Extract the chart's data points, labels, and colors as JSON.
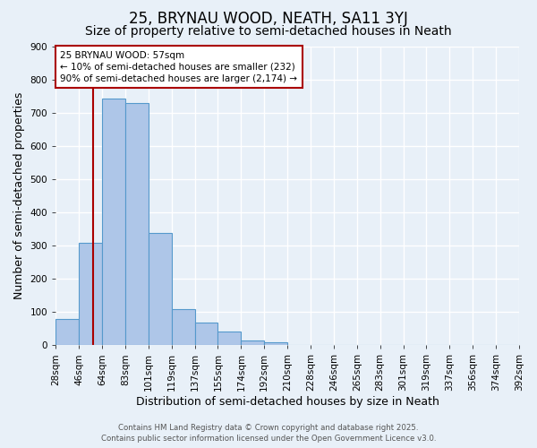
{
  "title": "25, BRYNAU WOOD, NEATH, SA11 3YJ",
  "subtitle": "Size of property relative to semi-detached houses in Neath",
  "xlabel": "Distribution of semi-detached houses by size in Neath",
  "ylabel": "Number of semi-detached properties",
  "bar_values": [
    80,
    308,
    742,
    728,
    338,
    108,
    68,
    40,
    15,
    10,
    0,
    0,
    0,
    0,
    0,
    0,
    0,
    0,
    0,
    0
  ],
  "tick_labels": [
    "28sqm",
    "46sqm",
    "64sqm",
    "83sqm",
    "101sqm",
    "119sqm",
    "137sqm",
    "155sqm",
    "174sqm",
    "192sqm",
    "210sqm",
    "228sqm",
    "246sqm",
    "265sqm",
    "283sqm",
    "301sqm",
    "319sqm",
    "337sqm",
    "356sqm",
    "374sqm",
    "392sqm"
  ],
  "ylim": [
    0,
    900
  ],
  "yticks": [
    0,
    100,
    200,
    300,
    400,
    500,
    600,
    700,
    800,
    900
  ],
  "bar_color": "#aec6e8",
  "bar_edge_color": "#5599cc",
  "bg_color": "#e8f0f8",
  "grid_color": "#ffffff",
  "vline_index": 1.6,
  "vline_color": "#aa0000",
  "annotation_title": "25 BRYNAU WOOD: 57sqm",
  "annotation_line1": "← 10% of semi-detached houses are smaller (232)",
  "annotation_line2": "90% of semi-detached houses are larger (2,174) →",
  "annotation_box_color": "#aa0000",
  "footer1": "Contains HM Land Registry data © Crown copyright and database right 2025.",
  "footer2": "Contains public sector information licensed under the Open Government Licence v3.0.",
  "title_fontsize": 12,
  "subtitle_fontsize": 10,
  "tick_fontsize": 7.5,
  "ylabel_fontsize": 9,
  "xlabel_fontsize": 9,
  "annotation_fontsize": 7.5
}
